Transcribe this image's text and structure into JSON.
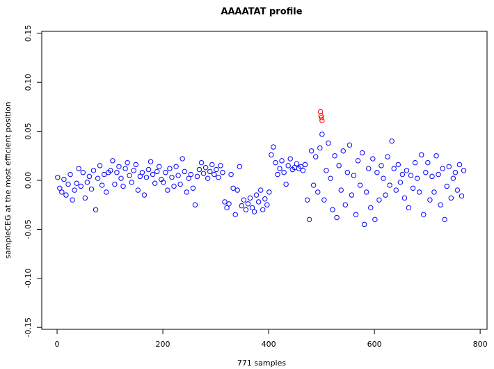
{
  "chart_data": {
    "type": "scatter",
    "title": "AAAATAT profile",
    "x_label": "771 samples",
    "y_label": "sampleCEG at the most efficient position",
    "xlim": [
      -29,
      813
    ],
    "ylim": [
      -0.152,
      0.152
    ],
    "xticks": [
      0,
      200,
      400,
      600,
      800
    ],
    "yticks": [
      0.15,
      {
        "value": 0.1,
        "label": "0.10"
      },
      0.05,
      {
        "value": 0,
        "label": "0.00"
      },
      -0.05,
      {
        "value": -0.1,
        "label": "-0.10"
      },
      -0.15
    ],
    "series": [
      {
        "color": "#0000ff",
        "x": [
          1,
          5,
          9,
          13,
          17,
          21,
          25,
          29,
          33,
          37,
          41,
          45,
          49,
          53,
          57,
          61,
          65,
          69,
          73,
          77,
          81,
          85,
          89,
          93,
          97,
          101,
          105,
          109,
          113,
          117,
          121,
          125,
          129,
          133,
          137,
          141,
          145,
          149,
          153,
          157,
          161,
          165,
          169,
          173,
          177,
          181,
          185,
          189,
          193,
          197,
          201,
          205,
          209,
          213,
          217,
          221,
          225,
          229,
          233,
          237,
          241,
          245,
          249,
          253,
          257,
          261,
          265,
          269,
          273,
          277,
          281,
          285,
          289,
          293,
          297,
          301,
          305,
          309,
          313,
          317,
          321,
          325,
          329,
          333,
          337,
          341,
          345,
          349,
          353,
          357,
          361,
          365,
          369,
          373,
          377,
          381,
          385,
          389,
          393,
          397,
          401,
          405,
          409,
          413,
          417,
          421,
          425,
          429,
          433,
          437,
          441,
          445,
          449,
          453,
          457,
          461,
          465,
          469,
          473,
          477,
          481,
          485,
          489,
          493,
          497,
          501,
          505,
          509,
          513,
          517,
          521,
          525,
          529,
          533,
          537,
          541,
          545,
          549,
          553,
          557,
          561,
          565,
          569,
          573,
          577,
          581,
          585,
          589,
          593,
          597,
          601,
          605,
          609,
          613,
          617,
          621,
          625,
          629,
          633,
          637,
          641,
          645,
          649,
          653,
          657,
          661,
          665,
          669,
          673,
          677,
          681,
          685,
          689,
          693,
          697,
          701,
          705,
          709,
          713,
          717,
          721,
          725,
          729,
          733,
          737,
          741,
          745,
          749,
          753,
          757,
          761,
          765,
          769
        ],
        "values": [
          0.003,
          -0.008,
          -0.012,
          0.001,
          -0.015,
          -0.004,
          0.006,
          -0.02,
          -0.01,
          -0.003,
          0.012,
          -0.006,
          0.008,
          -0.018,
          -0.002,
          0.004,
          -0.009,
          0.01,
          -0.03,
          0.002,
          0.015,
          -0.005,
          0.006,
          -0.012,
          0.008,
          0.01,
          0.02,
          -0.004,
          0.008,
          0.014,
          0.002,
          -0.006,
          0.012,
          0.018,
          0.005,
          -0.002,
          0.01,
          0.016,
          -0.01,
          0.004,
          0.008,
          -0.015,
          0.003,
          0.011,
          0.019,
          0.006,
          -0.003,
          0.009,
          0.014,
          0.001,
          -0.002,
          0.008,
          -0.01,
          0.012,
          0.003,
          -0.006,
          0.014,
          0.005,
          -0.004,
          0.022,
          0.009,
          -0.012,
          0.002,
          0.006,
          -0.008,
          -0.025,
          0.004,
          0.011,
          0.018,
          0.007,
          0.013,
          0.002,
          0.009,
          0.016,
          0.006,
          0.011,
          0.003,
          0.015,
          0.008,
          -0.022,
          -0.028,
          -0.024,
          0.006,
          -0.008,
          -0.035,
          -0.01,
          0.014,
          -0.026,
          -0.02,
          -0.03,
          -0.024,
          -0.018,
          -0.028,
          -0.032,
          -0.015,
          -0.022,
          -0.01,
          -0.03,
          -0.019,
          -0.025,
          -0.012,
          0.026,
          0.034,
          0.018,
          0.006,
          0.012,
          0.02,
          0.008,
          -0.004,
          0.015,
          0.022,
          0.011,
          0.013,
          0.017,
          0.012,
          0.014,
          0.01,
          0.016,
          -0.02,
          -0.04,
          0.03,
          -0.005,
          0.024,
          -0.012,
          0.033,
          0.047,
          -0.02,
          0.01,
          0.038,
          0.002,
          -0.03,
          0.025,
          -0.038,
          0.015,
          -0.01,
          0.03,
          -0.025,
          0.008,
          0.036,
          -0.015,
          0.005,
          -0.035,
          0.02,
          -0.005,
          0.028,
          -0.045,
          -0.012,
          0.012,
          -0.028,
          0.022,
          -0.04,
          0.008,
          -0.02,
          0.015,
          0.002,
          -0.015,
          0.024,
          -0.005,
          0.04,
          0.012,
          -0.01,
          0.016,
          -0.002,
          0.006,
          -0.018,
          0.01,
          -0.028,
          0.005,
          -0.008,
          0.018,
          0.002,
          -0.012,
          0.026,
          -0.035,
          0.008,
          0.018,
          -0.02,
          0.004,
          -0.012,
          0.025,
          0.006,
          -0.025,
          0.012,
          -0.04,
          -0.006,
          0.014,
          -0.018,
          0.002,
          0.008,
          -0.01,
          0.016,
          -0.016,
          0.01
        ]
      },
      {
        "color": "#ff0000",
        "x": [
          498,
          499,
          500,
          501
        ],
        "values": [
          0.07,
          0.066,
          0.064,
          0.061
        ]
      }
    ]
  }
}
